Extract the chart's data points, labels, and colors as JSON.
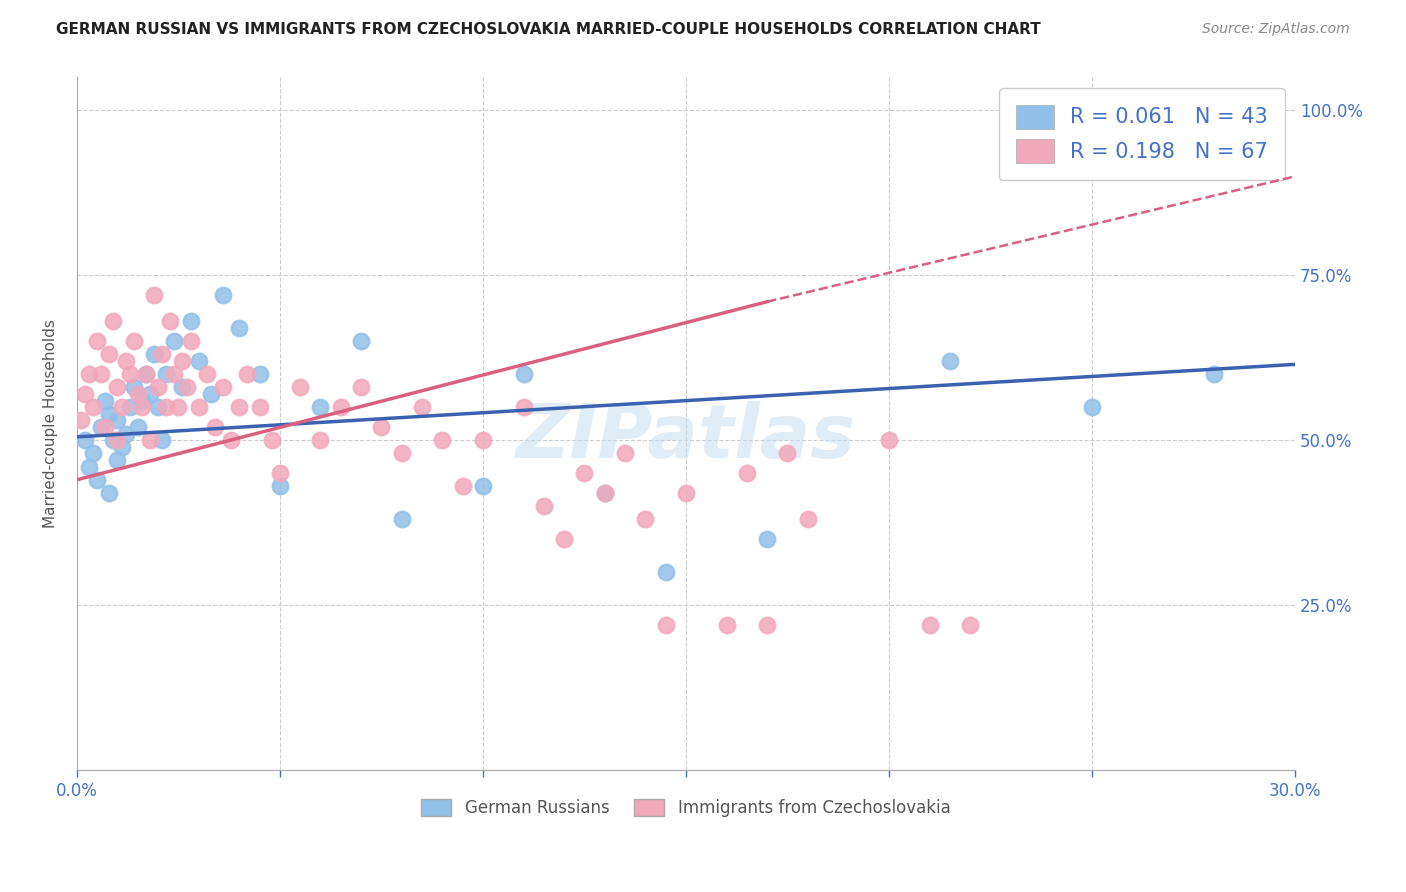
{
  "title": "GERMAN RUSSIAN VS IMMIGRANTS FROM CZECHOSLOVAKIA MARRIED-COUPLE HOUSEHOLDS CORRELATION CHART",
  "source": "Source: ZipAtlas.com",
  "ylabel": "Married-couple Households",
  "x_min": 0.0,
  "x_max": 0.3,
  "y_min": 0.0,
  "y_max": 1.05,
  "blue_R": 0.061,
  "blue_N": 43,
  "pink_R": 0.198,
  "pink_N": 67,
  "blue_color": "#92C0E8",
  "pink_color": "#F2A8BB",
  "blue_line_color": "#3A62B0",
  "pink_line_color": "#D96080",
  "right_axis_color": "#4472C4",
  "watermark": "ZIPatlas",
  "legend_label_blue": "German Russians",
  "legend_label_pink": "Immigrants from Czechoslovakia",
  "blue_scatter_x": [
    0.002,
    0.003,
    0.004,
    0.005,
    0.006,
    0.007,
    0.008,
    0.008,
    0.009,
    0.01,
    0.01,
    0.011,
    0.012,
    0.013,
    0.014,
    0.015,
    0.016,
    0.017,
    0.018,
    0.019,
    0.02,
    0.021,
    0.022,
    0.024,
    0.026,
    0.028,
    0.03,
    0.033,
    0.036,
    0.04,
    0.045,
    0.05,
    0.06,
    0.07,
    0.08,
    0.1,
    0.11,
    0.13,
    0.145,
    0.17,
    0.215,
    0.25,
    0.28
  ],
  "blue_scatter_y": [
    0.5,
    0.46,
    0.48,
    0.44,
    0.52,
    0.56,
    0.54,
    0.42,
    0.5,
    0.47,
    0.53,
    0.49,
    0.51,
    0.55,
    0.58,
    0.52,
    0.56,
    0.6,
    0.57,
    0.63,
    0.55,
    0.5,
    0.6,
    0.65,
    0.58,
    0.68,
    0.62,
    0.57,
    0.72,
    0.67,
    0.6,
    0.43,
    0.55,
    0.65,
    0.38,
    0.43,
    0.6,
    0.42,
    0.3,
    0.35,
    0.62,
    0.55,
    0.6
  ],
  "pink_scatter_x": [
    0.001,
    0.002,
    0.003,
    0.004,
    0.005,
    0.006,
    0.007,
    0.008,
    0.009,
    0.01,
    0.01,
    0.011,
    0.012,
    0.013,
    0.014,
    0.015,
    0.016,
    0.017,
    0.018,
    0.019,
    0.02,
    0.021,
    0.022,
    0.023,
    0.024,
    0.025,
    0.026,
    0.027,
    0.028,
    0.03,
    0.032,
    0.034,
    0.036,
    0.038,
    0.04,
    0.042,
    0.045,
    0.048,
    0.05,
    0.055,
    0.06,
    0.065,
    0.07,
    0.075,
    0.08,
    0.085,
    0.09,
    0.095,
    0.1,
    0.11,
    0.115,
    0.12,
    0.125,
    0.13,
    0.135,
    0.14,
    0.145,
    0.15,
    0.16,
    0.165,
    0.17,
    0.175,
    0.18,
    0.2,
    0.21,
    0.22,
    0.245
  ],
  "pink_scatter_y": [
    0.53,
    0.57,
    0.6,
    0.55,
    0.65,
    0.6,
    0.52,
    0.63,
    0.68,
    0.5,
    0.58,
    0.55,
    0.62,
    0.6,
    0.65,
    0.57,
    0.55,
    0.6,
    0.5,
    0.72,
    0.58,
    0.63,
    0.55,
    0.68,
    0.6,
    0.55,
    0.62,
    0.58,
    0.65,
    0.55,
    0.6,
    0.52,
    0.58,
    0.5,
    0.55,
    0.6,
    0.55,
    0.5,
    0.45,
    0.58,
    0.5,
    0.55,
    0.58,
    0.52,
    0.48,
    0.55,
    0.5,
    0.43,
    0.5,
    0.55,
    0.4,
    0.35,
    0.45,
    0.42,
    0.48,
    0.38,
    0.22,
    0.42,
    0.22,
    0.45,
    0.22,
    0.48,
    0.38,
    0.5,
    0.22,
    0.22,
    1.0
  ],
  "blue_line_x0": 0.0,
  "blue_line_y0": 0.505,
  "blue_line_x1": 0.3,
  "blue_line_y1": 0.615,
  "pink_line_x0": 0.0,
  "pink_line_y0": 0.44,
  "pink_line_solid_x1": 0.17,
  "pink_line_solid_y1": 0.71,
  "pink_line_dash_x1": 0.3,
  "pink_line_dash_y1": 0.9
}
